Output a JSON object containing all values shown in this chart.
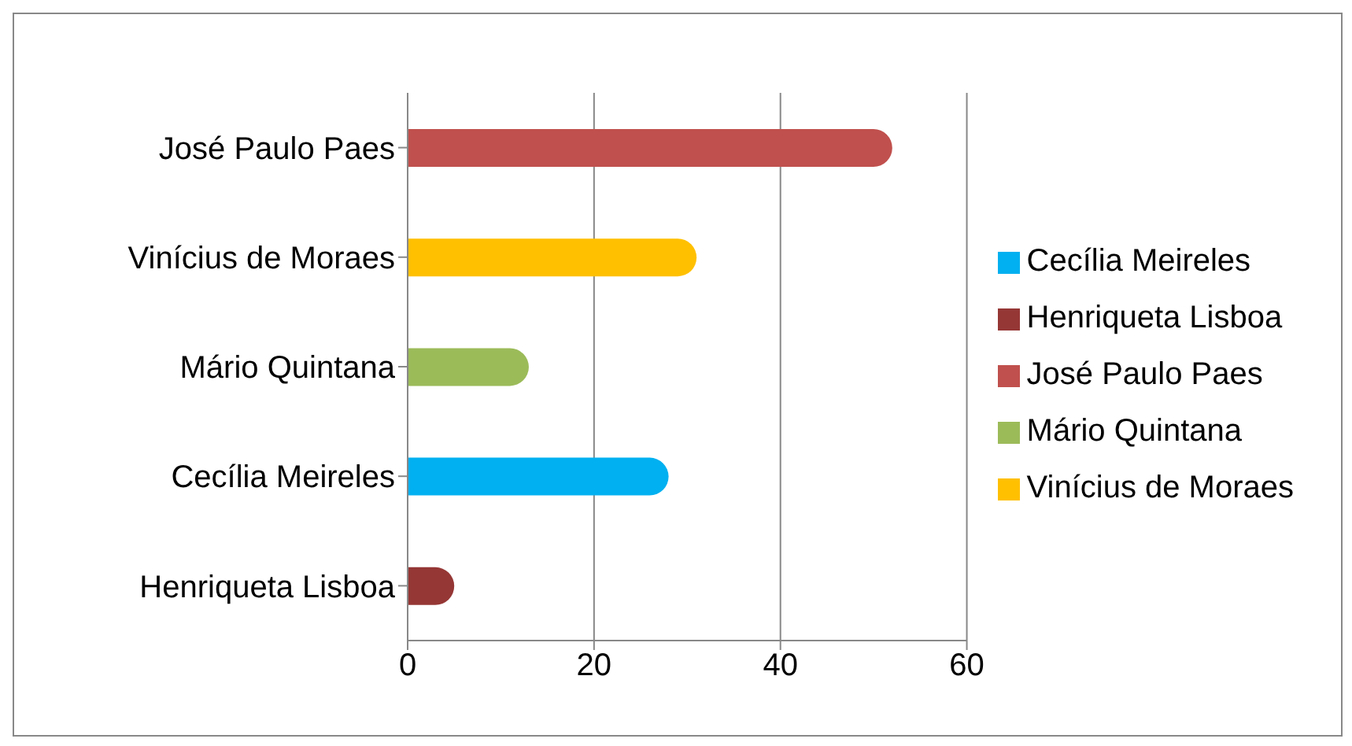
{
  "chart_data": {
    "type": "bar",
    "orientation": "horizontal",
    "stacked": true,
    "categories": [
      "José Paulo Paes",
      "Vinícius de Moraes",
      "Mário Quintana",
      "Cecília Meireles",
      "Henriqueta Lisboa"
    ],
    "series": [
      {
        "name": "Henriqueta Lisboa",
        "color": "#953735",
        "values": [
          null,
          null,
          null,
          null,
          5
        ]
      },
      {
        "name": "Cecília Meireles",
        "color": "#00b0f0",
        "values": [
          null,
          null,
          null,
          28,
          null
        ]
      },
      {
        "name": "Mário Quintana",
        "color": "#9bbb59",
        "values": [
          null,
          null,
          13,
          null,
          null
        ]
      },
      {
        "name": "Vinícius de Moraes",
        "color": "#ffc000",
        "values": [
          null,
          31,
          null,
          null,
          null
        ]
      },
      {
        "name": "José Paulo Paes",
        "color": "#c0504d",
        "values": [
          52,
          null,
          null,
          null,
          null
        ]
      }
    ],
    "xlim": [
      0,
      60
    ],
    "xticks": [
      0,
      20,
      40,
      60
    ],
    "grid": "x",
    "legend": "right"
  }
}
